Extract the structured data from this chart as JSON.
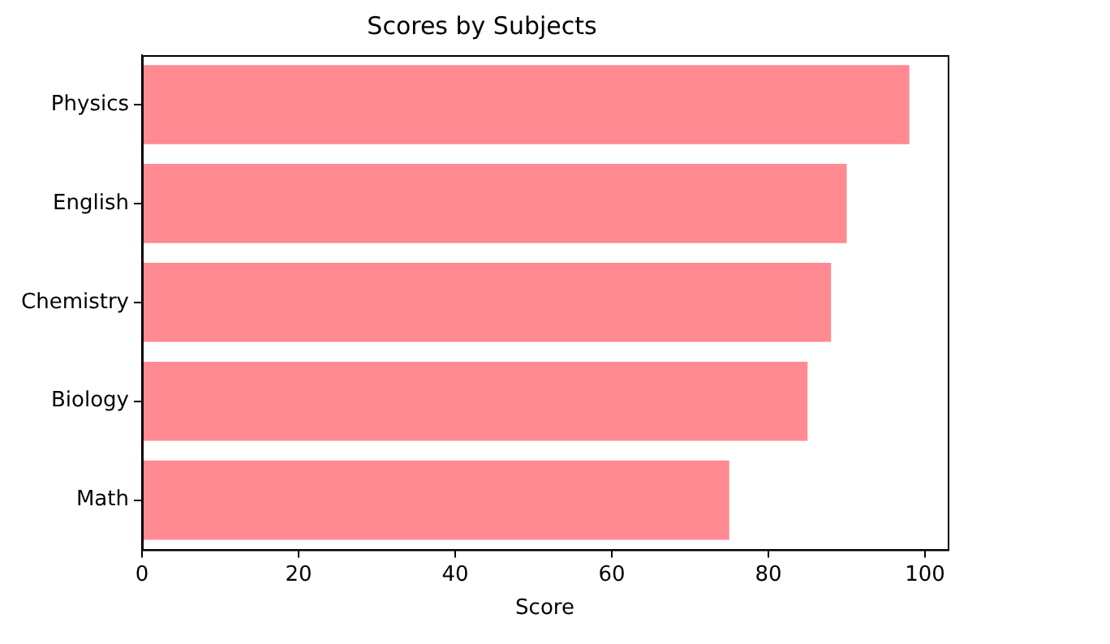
{
  "chart_data": {
    "type": "bar",
    "orientation": "horizontal",
    "title": "Scores by Subjects",
    "xlabel": "Score",
    "categories": [
      "Physics",
      "English",
      "Chemistry",
      "Biology",
      "Math"
    ],
    "values": [
      98,
      90,
      88,
      85,
      75
    ],
    "color": "#ff8a92",
    "xlim": [
      0,
      102.9
    ],
    "xticks": [
      0,
      20,
      40,
      60,
      80,
      100
    ],
    "grid": false,
    "legend": false
  }
}
